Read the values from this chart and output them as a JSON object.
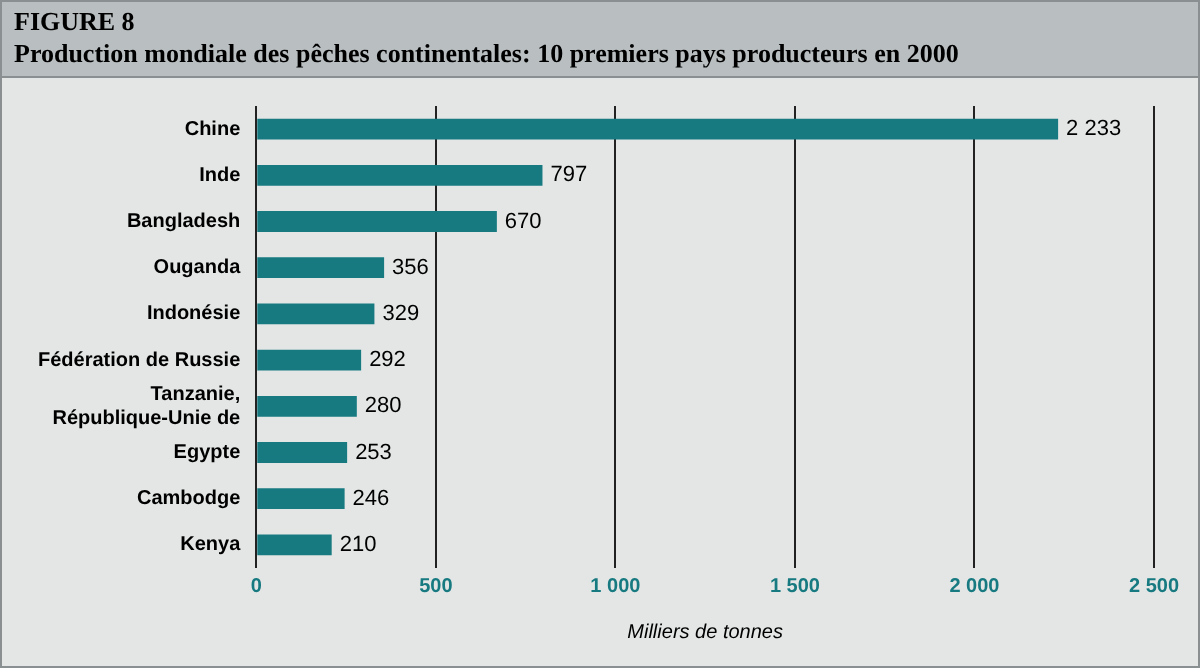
{
  "chart_data": {
    "type": "bar",
    "orientation": "horizontal",
    "title": "FIGURE 8",
    "subtitle": "Production mondiale des pêches continentales: 10 premiers pays producteurs en 2000",
    "categories": [
      "Chine",
      "Inde",
      "Bangladesh",
      "Ouganda",
      "Indonésie",
      "Fédération de Russie",
      "Tanzanie,\nRépublique-Unie de",
      "Egypte",
      "Cambodge",
      "Kenya"
    ],
    "values": [
      2233,
      797,
      670,
      356,
      329,
      292,
      280,
      253,
      246,
      210
    ],
    "value_labels": [
      "2 233",
      "797",
      "670",
      "356",
      "329",
      "292",
      "280",
      "253",
      "246",
      "210"
    ],
    "color": "#177a80",
    "xlabel": "Milliers de tonnes",
    "xlim": [
      0,
      2500
    ],
    "xticks": [
      {
        "value": 0,
        "label": "0"
      },
      {
        "value": 500,
        "label": "500"
      },
      {
        "value": 1000,
        "label": "1 000"
      },
      {
        "value": 1500,
        "label": "1 500"
      },
      {
        "value": 2000,
        "label": "2 000"
      },
      {
        "value": 2500,
        "label": "2 500"
      }
    ],
    "grid": "x",
    "legend": false
  }
}
